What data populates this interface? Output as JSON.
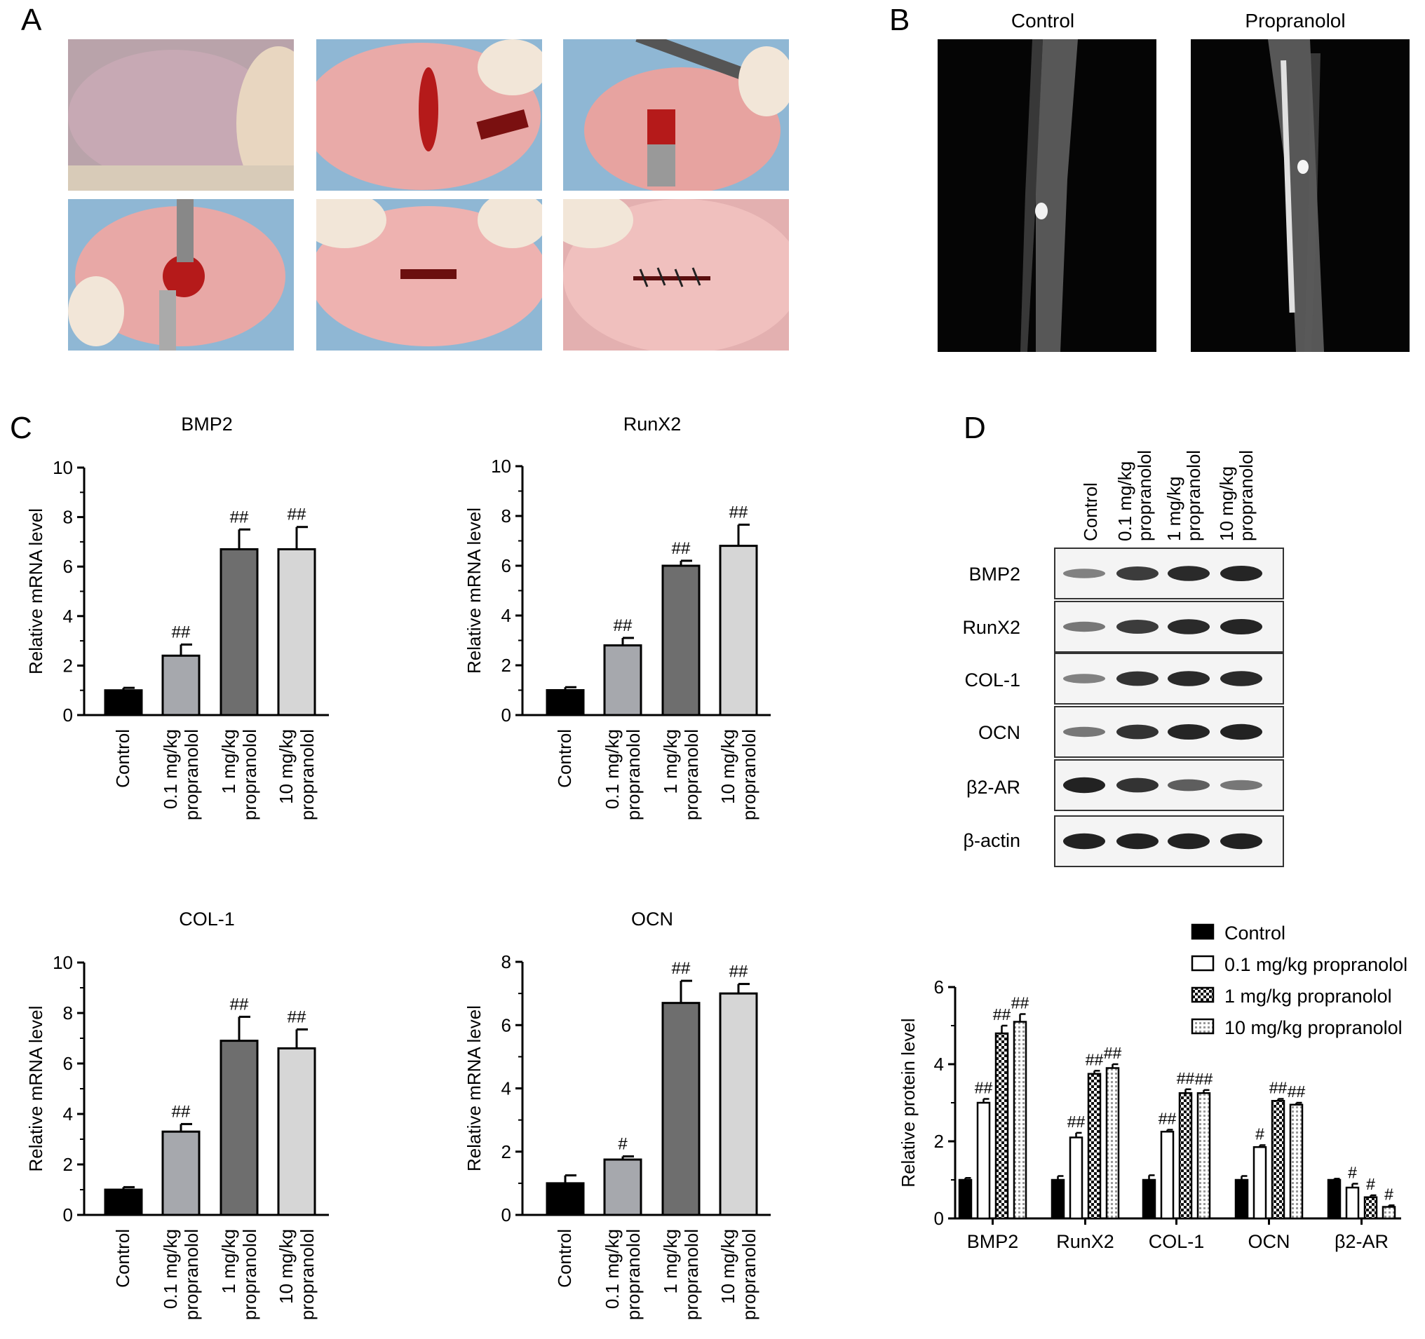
{
  "panel_labels": {
    "a": "A",
    "b": "B",
    "c": "C",
    "d": "D"
  },
  "panel_b": {
    "control_label": "Control",
    "propranolol_label": "Propranolol"
  },
  "colors": {
    "control": "#000000",
    "dose_0_1": "#a6a8ad",
    "dose_1": "#6e6e6e",
    "dose_10": "#d6d6d6",
    "xray_bg": "#050505",
    "skin": "#e9aaa8",
    "blood": "#b51a1a"
  },
  "panel_c": {
    "categories": [
      "Control",
      "0.1 mg/kg\npropranolol",
      "1 mg/kg\npropranolol",
      "10 mg/kg\npropranolol"
    ]
  },
  "panel_d_blot": {
    "lanes": [
      "Control",
      "0.1 mg/kg\npropranolol",
      "1 mg/kg\npropranolol",
      "10 mg/kg\npropranolol"
    ],
    "rows": [
      {
        "label": "BMP2",
        "intensity": [
          0.35,
          0.75,
          0.85,
          0.88
        ]
      },
      {
        "label": "RunX2",
        "intensity": [
          0.4,
          0.75,
          0.85,
          0.88
        ]
      },
      {
        "label": "COL-1",
        "intensity": [
          0.35,
          0.8,
          0.85,
          0.85
        ]
      },
      {
        "label": "OCN",
        "intensity": [
          0.4,
          0.8,
          0.88,
          0.9
        ]
      },
      {
        "label": "β2-AR",
        "intensity": [
          0.9,
          0.8,
          0.55,
          0.4
        ]
      },
      {
        "label": "β-actin",
        "intensity": [
          0.9,
          0.9,
          0.9,
          0.9
        ]
      }
    ]
  },
  "chart_data": [
    {
      "type": "bar",
      "title": "BMP2",
      "ylabel": "Relative mRNA level",
      "categories": [
        "Control",
        "0.1 mg/kg propranolol",
        "1 mg/kg propranolol",
        "10 mg/kg propranolol"
      ],
      "values": [
        1.0,
        2.4,
        6.7,
        6.7
      ],
      "errors": [
        0.1,
        0.45,
        0.8,
        0.9
      ],
      "annotations": [
        "",
        "##",
        "##",
        "##"
      ],
      "ylim": [
        0,
        10
      ],
      "yticks": [
        0,
        2,
        4,
        6,
        8,
        10
      ]
    },
    {
      "type": "bar",
      "title": "RunX2",
      "ylabel": "Relative mRNA level",
      "categories": [
        "Control",
        "0.1 mg/kg propranolol",
        "1 mg/kg propranolol",
        "10 mg/kg propranolol"
      ],
      "values": [
        1.0,
        2.8,
        6.0,
        6.8
      ],
      "errors": [
        0.12,
        0.3,
        0.2,
        0.85
      ],
      "annotations": [
        "",
        "##",
        "##",
        "##"
      ],
      "ylim": [
        0,
        10
      ],
      "yticks": [
        0,
        2,
        4,
        6,
        8,
        10
      ]
    },
    {
      "type": "bar",
      "title": "COL-1",
      "ylabel": "Relative mRNA level",
      "categories": [
        "Control",
        "0.1 mg/kg propranolol",
        "1 mg/kg propranolol",
        "10 mg/kg propranolol"
      ],
      "values": [
        1.0,
        3.3,
        6.9,
        6.6
      ],
      "errors": [
        0.1,
        0.3,
        0.95,
        0.75
      ],
      "annotations": [
        "",
        "##",
        "##",
        "##"
      ],
      "ylim": [
        0,
        10
      ],
      "yticks": [
        0,
        2,
        4,
        6,
        8,
        10
      ]
    },
    {
      "type": "bar",
      "title": "OCN",
      "ylabel": "Relative mRNA level",
      "categories": [
        "Control",
        "0.1 mg/kg propranolol",
        "1 mg/kg propranolol",
        "10 mg/kg propranolol"
      ],
      "values": [
        1.0,
        1.75,
        6.7,
        7.0
      ],
      "errors": [
        0.25,
        0.1,
        0.7,
        0.3
      ],
      "annotations": [
        "",
        "#",
        "##",
        "##"
      ],
      "ylim": [
        0,
        8
      ],
      "yticks": [
        0,
        2,
        4,
        6,
        8
      ]
    },
    {
      "type": "bar",
      "title": "",
      "ylabel": "Relative protein level",
      "categories": [
        "BMP2",
        "RunX2",
        "COL-1",
        "OCN",
        "β2-AR"
      ],
      "series": [
        {
          "name": "Control",
          "values": [
            1.0,
            1.0,
            1.0,
            1.0,
            1.0
          ],
          "errors": [
            0.05,
            0.1,
            0.12,
            0.1,
            0.03
          ],
          "annotations": [
            "",
            "",
            "",
            "",
            ""
          ]
        },
        {
          "name": "0.1 mg/kg propranolol",
          "values": [
            3.0,
            2.1,
            2.25,
            1.85,
            0.8
          ],
          "errors": [
            0.1,
            0.12,
            0.05,
            0.05,
            0.1
          ],
          "annotations": [
            "##",
            "##",
            "##",
            "#",
            "#"
          ]
        },
        {
          "name": "1 mg/kg propranolol",
          "values": [
            4.8,
            3.75,
            3.25,
            3.05,
            0.55
          ],
          "errors": [
            0.2,
            0.08,
            0.1,
            0.05,
            0.05
          ],
          "annotations": [
            "##",
            "##",
            "##",
            "##",
            "#"
          ]
        },
        {
          "name": "10 mg/kg propranolol",
          "values": [
            5.1,
            3.9,
            3.25,
            2.95,
            0.3
          ],
          "errors": [
            0.2,
            0.1,
            0.08,
            0.05,
            0.04
          ],
          "annotations": [
            "##",
            "##",
            "##",
            "##",
            "#"
          ]
        }
      ],
      "ylim": [
        0,
        6
      ],
      "yticks": [
        0,
        2,
        4,
        6
      ],
      "legend": "top-right"
    }
  ]
}
